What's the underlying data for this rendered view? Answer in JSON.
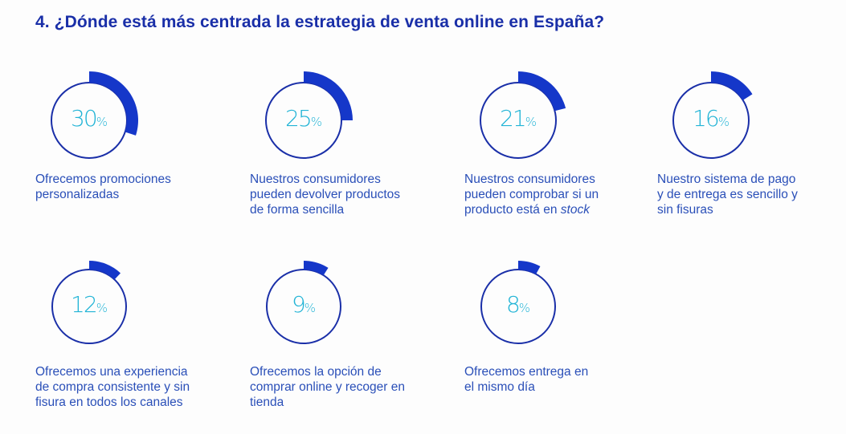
{
  "title": "4. ¿Dónde está más centrada la estrategia de venta online en España?",
  "colors": {
    "title": "#1a2fa8",
    "ring": "#1a2fa8",
    "arc": "#1537c9",
    "percent": "#22b4d6",
    "label": "#2a4fb8"
  },
  "chart_data": {
    "type": "pie",
    "title": "4. ¿Dónde está más centrada la estrategia de venta online en España?",
    "unit": "%",
    "items": [
      {
        "value": 30,
        "display": "30",
        "symbol": "%",
        "label_lines": [
          "Ofrecemos promociones",
          "personalizadas"
        ]
      },
      {
        "value": 25,
        "display": "25",
        "symbol": "%",
        "label_lines": [
          "Nuestros consumidores",
          "pueden devolver productos",
          "de forma sencilla"
        ]
      },
      {
        "value": 21,
        "display": "21",
        "symbol": "%",
        "label_lines": [
          "Nuestros consumidores",
          "pueden comprobar si un",
          "producto está en "
        ],
        "label_italic": "stock"
      },
      {
        "value": 16,
        "display": "16",
        "symbol": "%",
        "label_lines": [
          "Nuestro sistema de pago",
          "y de entrega es sencillo y",
          "sin fisuras"
        ]
      },
      {
        "value": 12,
        "display": "12",
        "symbol": "%",
        "label_lines": [
          "Ofrecemos una experiencia",
          "de compra consistente y sin",
          "fisura en todos los canales"
        ]
      },
      {
        "value": 9,
        "display": "9",
        "symbol": "%",
        "label_lines": [
          "Ofrecemos la opción de",
          "comprar online y recoger en",
          "tienda"
        ]
      },
      {
        "value": 8,
        "display": "8",
        "symbol": "%",
        "label_lines": [
          "Ofrecemos entrega en",
          "el mismo día"
        ]
      }
    ]
  }
}
